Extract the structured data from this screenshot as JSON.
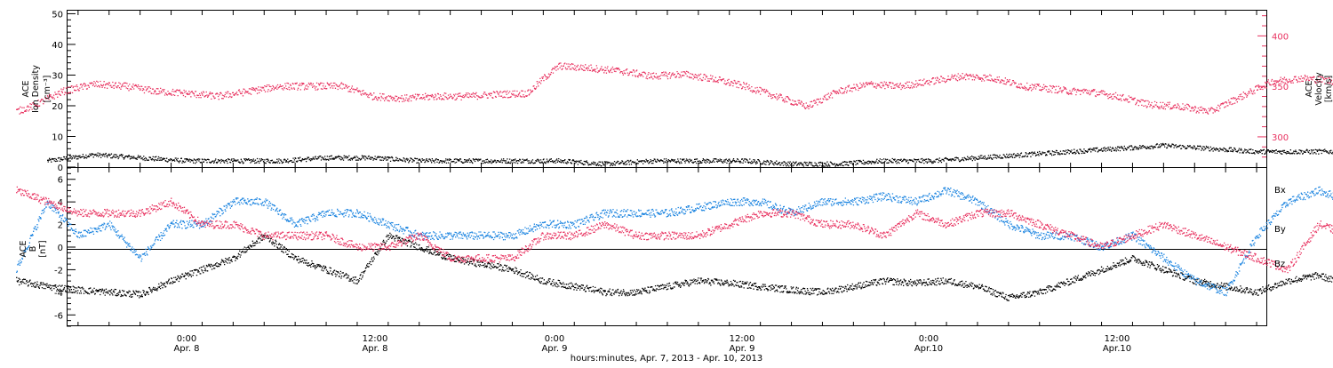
{
  "chart_data": {
    "type": "scatter",
    "colors": {
      "black": "#000000",
      "red": "#e8315f",
      "blue": "#1b84e0"
    },
    "x_axis": {
      "range_hours": [
        -0.001,
        0
      ],
      "ticks": [
        {
          "time": "0:00",
          "date": "Apr. 8"
        },
        {
          "time": "12:00",
          "date": "Apr. 8"
        },
        {
          "time": "0:00",
          "date": "Apr. 9"
        },
        {
          "time": "12:00",
          "date": "Apr. 9"
        },
        {
          "time": "0:00",
          "date": "Apr.10"
        },
        {
          "time": "12:00",
          "date": "Apr.10"
        }
      ],
      "xlabel": "hours:minutes, Apr.  7, 2013 - Apr. 10, 2013"
    },
    "panels": [
      {
        "name": "density-velocity",
        "ylabel_left": [
          "ACE",
          "Ion Density",
          "[cm⁻³]"
        ],
        "ylabel_right": [
          "ACE",
          "Velocity",
          "[km/s]"
        ],
        "left_ylim": [
          0,
          51
        ],
        "left_ticks": [
          "0",
          "10",
          "20",
          "30",
          "40",
          "50"
        ],
        "right_ylim": [
          270,
          425
        ],
        "right_ticks": [
          "300",
          "350",
          "400"
        ],
        "series": [
          {
            "axis": "left",
            "color": "black",
            "x": [
              -9,
              -6,
              -3,
              0,
              3,
              6,
              9,
              12,
              15,
              18,
              21,
              24,
              27,
              30,
              33,
              36,
              39,
              42,
              45,
              48,
              51,
              54,
              57,
              60,
              63,
              66,
              69,
              72,
              75,
              78,
              81
            ],
            "y": [
              2,
              4,
              3,
              2,
              2,
              2,
              3,
              3,
              2,
              2,
              2,
              2,
              1,
              2,
              2,
              2,
              1,
              1,
              2,
              2,
              3,
              4,
              5,
              6,
              7,
              6,
              5,
              5,
              5,
              5,
              6
            ]
          },
          {
            "axis": "right",
            "color": "red",
            "x": [
              -11,
              -10,
              -8,
              -6,
              -4,
              -2,
              0,
              2,
              4,
              6,
              8,
              10,
              12,
              14,
              16,
              18,
              20,
              22,
              23,
              24,
              26,
              28,
              30,
              32,
              34,
              36,
              38,
              40,
              42,
              44,
              46,
              48,
              50,
              52,
              54,
              56,
              57,
              58,
              60,
              62,
              64,
              66,
              68,
              70,
              72,
              74,
              76,
              78,
              81
            ],
            "y": [
              325,
              330,
              345,
              352,
              350,
              345,
              343,
              340,
              345,
              350,
              350,
              350,
              340,
              338,
              340,
              340,
              342,
              343,
              358,
              370,
              368,
              365,
              360,
              362,
              357,
              350,
              340,
              330,
              345,
              352,
              350,
              355,
              360,
              358,
              350,
              347,
              345,
              345,
              340,
              332,
              330,
              325,
              340,
              355,
              358,
              355,
              358,
              360,
              370
            ]
          }
        ]
      },
      {
        "name": "magnetic-field",
        "ylabel_left": [
          "ACE",
          "B",
          "[nT]"
        ],
        "left_ylim": [
          -7,
          7
        ],
        "left_ticks": [
          "-6",
          "-4",
          "-2",
          "0",
          "2",
          "4",
          "6"
        ],
        "legend": [
          "Bx",
          "By",
          "Bz"
        ],
        "series": [
          {
            "name": "Bx",
            "color": "black",
            "x": [
              -11,
              -9,
              -7,
              -5,
              -3,
              -1,
              1,
              3,
              5,
              7,
              9,
              11,
              13,
              15,
              17,
              19,
              21,
              23,
              25,
              27,
              29,
              31,
              33,
              35,
              37,
              39,
              41,
              43,
              45,
              47,
              49,
              51,
              53,
              55,
              57,
              59,
              61,
              63,
              65,
              67,
              69,
              71,
              73,
              75,
              77,
              79,
              81
            ],
            "y": [
              -3,
              -3.5,
              -3.8,
              -4,
              -4.2,
              -3,
              -2,
              -1,
              1,
              -1,
              -2,
              -3,
              1,
              0,
              -1,
              -1.5,
              -2,
              -3,
              -3.5,
              -4,
              -4,
              -3.5,
              -3,
              -3.2,
              -3.5,
              -3.8,
              -4,
              -3.5,
              -3,
              -3.2,
              -3,
              -3.5,
              -4.5,
              -4,
              -3,
              -2,
              -1,
              -2,
              -3,
              -3.5,
              -4,
              -3,
              -2.5,
              -3.5,
              -4,
              -4.5,
              -3
            ]
          },
          {
            "name": "By",
            "color": "blue",
            "x": [
              -11,
              -9,
              -7,
              -5,
              -3,
              -1,
              1,
              3,
              5,
              7,
              9,
              11,
              13,
              15,
              17,
              19,
              21,
              23,
              25,
              27,
              29,
              31,
              33,
              35,
              37,
              39,
              41,
              43,
              45,
              47,
              49,
              51,
              53,
              55,
              57,
              59,
              61,
              63,
              65,
              67,
              69,
              71,
              73,
              75,
              77,
              79,
              81
            ],
            "y": [
              -2,
              4,
              1,
              2,
              -1,
              2,
              2,
              4,
              4,
              2,
              3,
              3,
              2,
              1,
              1,
              1,
              1,
              2,
              2,
              3,
              3,
              3,
              3.5,
              4,
              4,
              3,
              4,
              4,
              4.5,
              4,
              5,
              4,
              2,
              1,
              1,
              0,
              1,
              -1,
              -3,
              -4,
              1,
              4,
              5,
              4,
              3,
              2,
              3
            ]
          },
          {
            "name": "Bz",
            "color": "red",
            "x": [
              -11,
              -9,
              -7,
              -5,
              -3,
              -1,
              1,
              3,
              5,
              7,
              9,
              11,
              13,
              15,
              17,
              19,
              21,
              23,
              25,
              27,
              29,
              31,
              33,
              35,
              37,
              39,
              41,
              43,
              45,
              47,
              49,
              51,
              53,
              55,
              57,
              59,
              61,
              63,
              65,
              67,
              69,
              71,
              73,
              75,
              77,
              79,
              81
            ],
            "y": [
              5,
              4,
              3,
              3,
              3,
              4,
              2,
              2,
              1,
              1,
              1,
              0,
              0,
              1,
              -1,
              -1,
              -1,
              1,
              1,
              2,
              1,
              1,
              1,
              2,
              3,
              3,
              2,
              2,
              1,
              3,
              2,
              3,
              3,
              2,
              1,
              0,
              1,
              2,
              1,
              0,
              -1,
              -2,
              2,
              1,
              2,
              0,
              1
            ]
          }
        ]
      }
    ]
  }
}
